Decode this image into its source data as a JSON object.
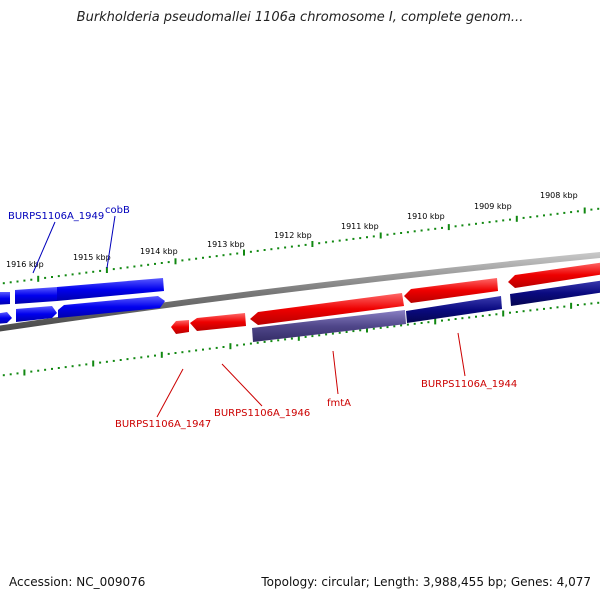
{
  "title": "Burkholderia pseudomallei 1106a chromosome I, complete genom...",
  "footer": {
    "accession": "Accession: NC_009076",
    "summary": "Topology: circular; Length: 3,988,455 bp; Genes: 4,077"
  },
  "colors": {
    "forward_gene": "#ee0000",
    "forward_gene_dark": "#0a0a80",
    "forward_gene_muted": "#50478a",
    "reverse_gene": "#0000ee",
    "forward_label": "#cc0000",
    "reverse_label": "#0000bb",
    "tick": "#118811",
    "backbone": "#7a7a7a"
  },
  "scale_labels": [
    "1916 kbp",
    "1915 kbp",
    "1914 kbp",
    "1913 kbp",
    "1912 kbp",
    "1911 kbp",
    "1910 kbp",
    "1909 kbp",
    "1908 kbp"
  ],
  "gene_labels": {
    "reverse": [
      "BURPS1106A_1949",
      "cobB"
    ],
    "forward": [
      "BURPS1106A_1947",
      "BURPS1106A_1946",
      "fmtA",
      "BURPS1106A_1944"
    ]
  }
}
